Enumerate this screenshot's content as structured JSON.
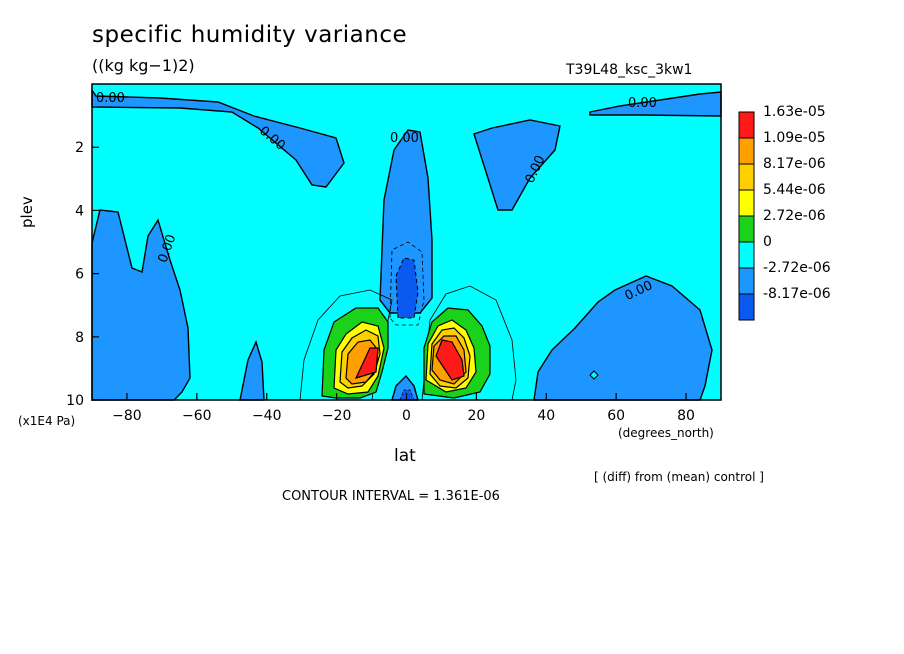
{
  "header": {
    "title": "specific humidity variance",
    "units": "((kg kg−1)2)",
    "run": "T39L48_ksc_3kw1"
  },
  "footer": {
    "y_unit": "(x1E4 Pa)",
    "x_unit": "(degrees_north)",
    "diff_note": "[ (diff) from (mean) control ]",
    "contour_interval": "CONTOUR INTERVAL = 1.361E-06"
  },
  "chart_data": {
    "type": "heatmap",
    "title": "specific humidity variance",
    "xlabel": "lat",
    "ylabel": "plev",
    "xlim": [
      -90,
      90
    ],
    "ylim": [
      10,
      0
    ],
    "x_ticks": [
      -80,
      -60,
      -40,
      -20,
      0,
      20,
      40,
      60,
      80
    ],
    "y_ticks": [
      2,
      4,
      6,
      8,
      10
    ],
    "contour_labels": [
      "0.00",
      "0.00",
      "0.00",
      "0.00",
      "0.00",
      "0.00",
      "0.00"
    ],
    "colorbar": {
      "levels": [
        "1.63e-05",
        "1.09e-05",
        "8.17e-06",
        "5.44e-06",
        "2.72e-06",
        "0",
        "-2.72e-06",
        "-8.17e-06"
      ],
      "colors": [
        "#ff1a1a",
        "#ffa000",
        "#ffd000",
        "#ffff00",
        "#19d219",
        "#00ffff",
        "#1e96ff",
        "#0a5af0"
      ]
    },
    "features": [
      {
        "name": "positive max (SH)",
        "lat": -10,
        "plev": 8.7,
        "value_min": "1.63e-05"
      },
      {
        "name": "positive max (NH)",
        "lat": 12,
        "plev": 8.8,
        "value_min": "1.63e-05"
      },
      {
        "name": "negative min",
        "lat": 0,
        "plev": 6.3,
        "value_max": "-2.72e-06"
      }
    ]
  }
}
